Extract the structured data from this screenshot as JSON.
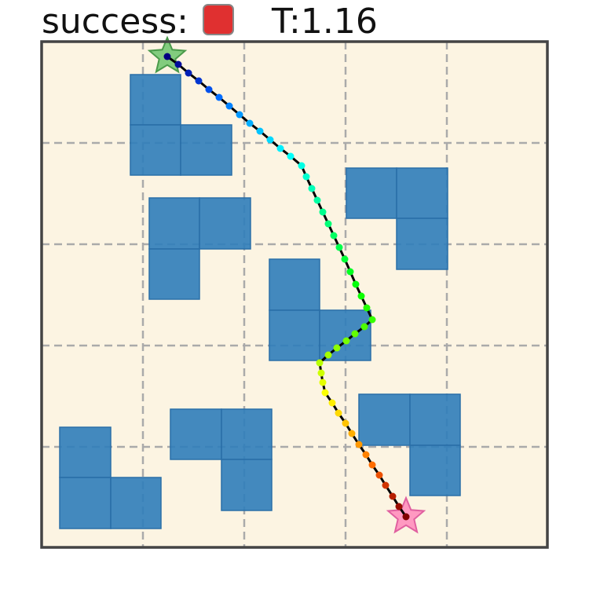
{
  "header": {
    "status_label": "success:",
    "time_label": "T:1.16"
  }
}
